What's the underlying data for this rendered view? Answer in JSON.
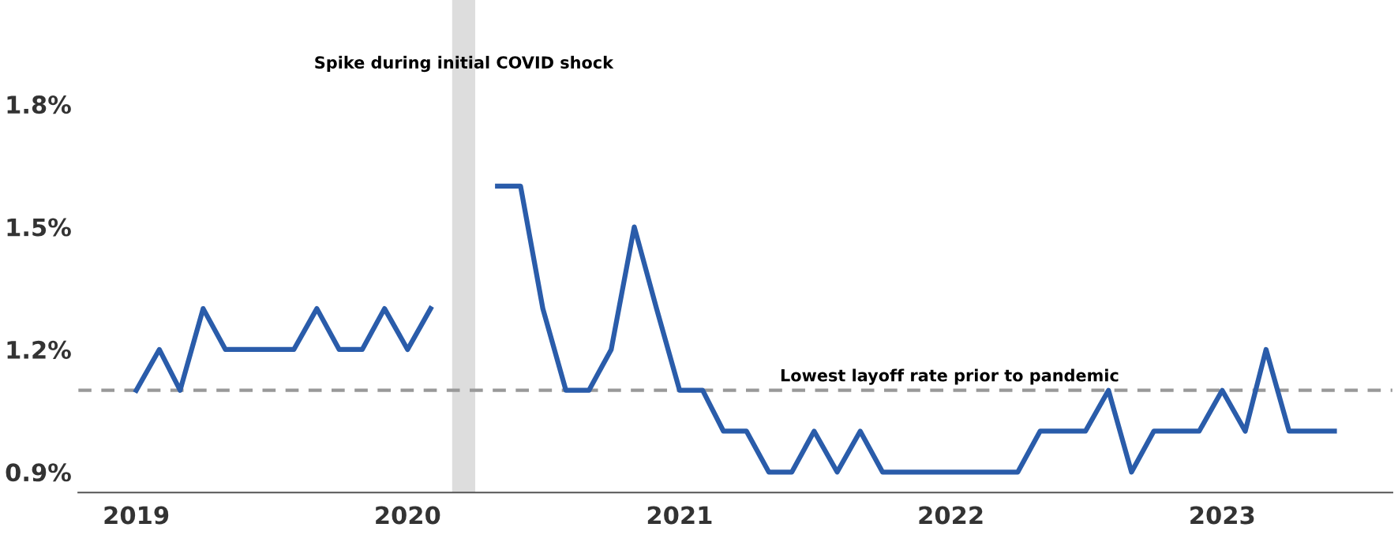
{
  "chart_data": {
    "type": "line",
    "x": [
      "2019-01",
      "2019-02",
      "2019-03",
      "2019-04",
      "2019-05",
      "2019-06",
      "2019-07",
      "2019-08",
      "2019-09",
      "2019-10",
      "2019-11",
      "2019-12",
      "2020-01",
      "2020-02",
      "2020-03",
      "2020-04",
      "2020-05",
      "2020-06",
      "2020-07",
      "2020-08",
      "2020-09",
      "2020-10",
      "2020-11",
      "2020-12",
      "2021-01",
      "2021-02",
      "2021-03",
      "2021-04",
      "2021-05",
      "2021-06",
      "2021-07",
      "2021-08",
      "2021-09",
      "2021-10",
      "2021-11",
      "2021-12",
      "2022-01",
      "2022-02",
      "2022-03",
      "2022-04",
      "2022-05",
      "2022-06",
      "2022-07",
      "2022-08",
      "2022-09",
      "2022-10",
      "2022-11",
      "2022-12",
      "2023-01",
      "2023-02",
      "2023-03",
      "2023-04",
      "2023-05",
      "2023-06"
    ],
    "series": [
      {
        "color": "#2a5caa",
        "values": [
          1.1,
          1.2,
          1.1,
          1.3,
          1.2,
          1.2,
          1.2,
          1.2,
          1.3,
          1.2,
          1.2,
          1.3,
          1.2,
          1.3,
          null,
          null,
          1.6,
          1.6,
          1.3,
          1.1,
          1.1,
          1.2,
          1.5,
          1.3,
          1.1,
          1.1,
          1.0,
          1.0,
          0.9,
          0.9,
          1.0,
          0.9,
          1.0,
          0.9,
          0.9,
          0.9,
          0.9,
          0.9,
          0.9,
          0.9,
          1.0,
          1.0,
          1.0,
          1.1,
          0.9,
          1.0,
          1.0,
          1.0,
          1.1,
          1.0,
          1.2,
          1.0,
          1.0,
          1.0
        ]
      }
    ],
    "xlim": [
      "2018-10-15",
      "2023-08-18"
    ],
    "xticks": [
      "2019",
      "2020",
      "2021",
      "2022",
      "2023"
    ],
    "ylim": [
      0.85,
      1.8
    ],
    "yticks": [
      {
        "value": 0.9,
        "label": "0.9%"
      },
      {
        "value": 1.2,
        "label": "1.2%"
      },
      {
        "value": 1.5,
        "label": "1.5%"
      },
      {
        "value": 1.8,
        "label": "1.8%"
      }
    ],
    "ref_lines": [
      {
        "axis": "y",
        "value": 1.1,
        "label": "Lowest layoff rate prior to pandemic",
        "color": "#999999",
        "line_style": "dashed"
      }
    ],
    "bands": [
      {
        "axis": "x",
        "from": "2020-03",
        "to": "2020-04",
        "label": "Spike during initial COVID shock",
        "color": "#dddddd"
      }
    ],
    "grid": false,
    "legend": false,
    "line_style": "solid",
    "marker": "none"
  }
}
